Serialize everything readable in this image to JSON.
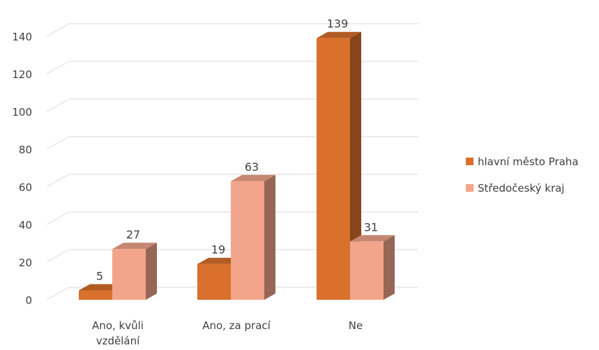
{
  "chart_data": {
    "type": "bar",
    "categories": [
      "Ano, kvůli vzdělání",
      "Ano, za prací",
      "Ne"
    ],
    "category_lines": [
      [
        "Ano, kvůli",
        "vzdělání"
      ],
      [
        "Ano, za prací"
      ],
      [
        "Ne"
      ]
    ],
    "series": [
      {
        "name": "hlavní město Praha",
        "values": [
          5,
          19,
          139
        ],
        "color": "#d9702b"
      },
      {
        "name": "Středočeský kraj",
        "values": [
          27,
          63,
          31
        ],
        "color": "#f2a58a"
      }
    ],
    "yticks": [
      0,
      20,
      40,
      60,
      80,
      100,
      120,
      140
    ],
    "ylim": [
      0,
      150
    ],
    "grid": true,
    "legend_position": "right",
    "three_d": true
  }
}
